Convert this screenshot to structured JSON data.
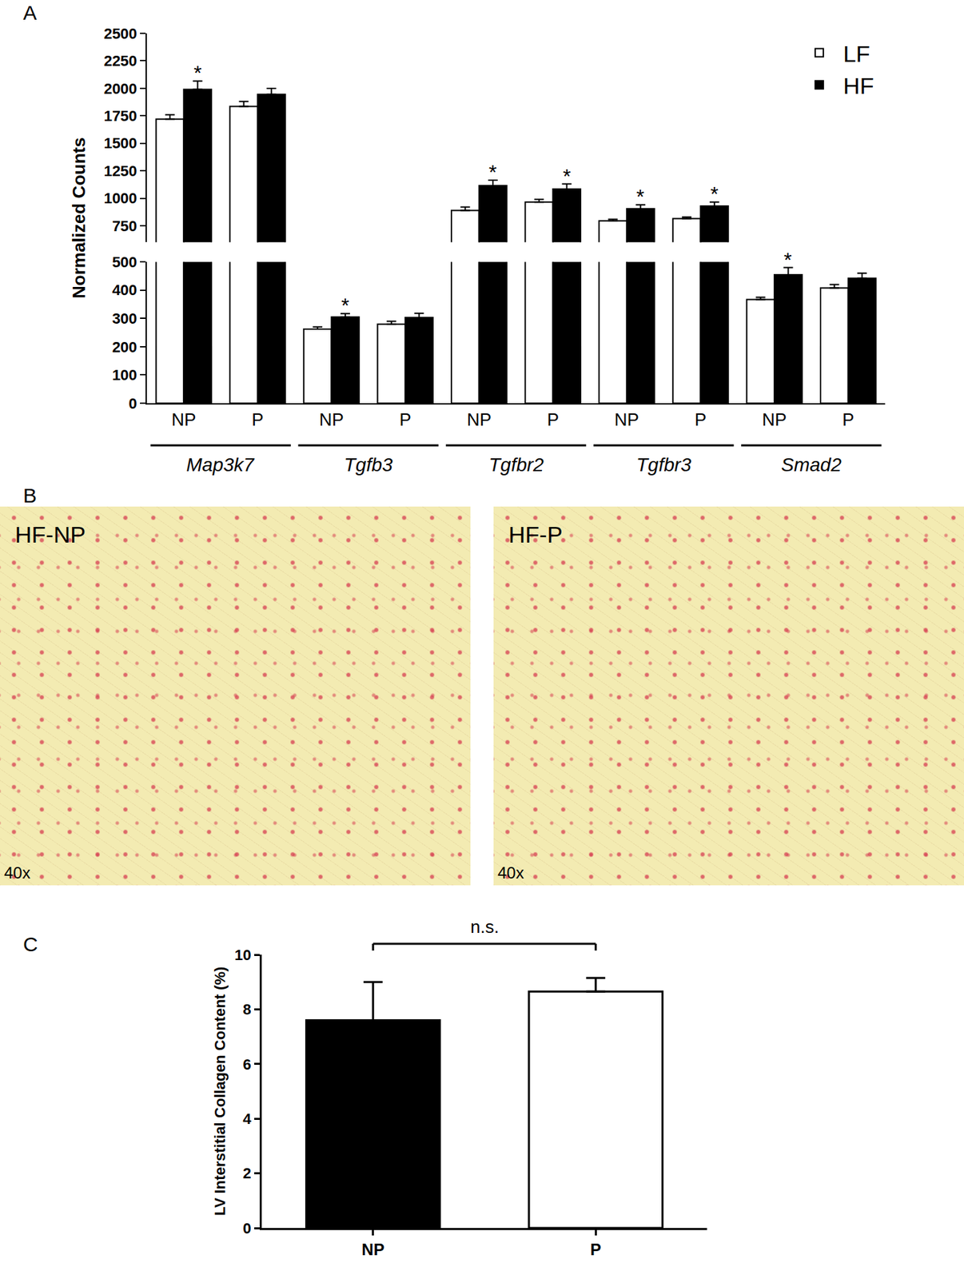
{
  "panel_labels": [
    "A",
    "B",
    "C"
  ],
  "chart_data": [
    {
      "type": "bar",
      "ylabel": "Normalized Counts",
      "categories": [
        "NP",
        "P",
        "NP",
        "P",
        "NP",
        "P",
        "NP",
        "P",
        "NP",
        "P"
      ],
      "category_groups": [
        "Map3k7",
        "Map3k7",
        "Tgfb3",
        "Tgfb3",
        "Tgfbr2",
        "Tgfbr2",
        "Tgfbr3",
        "Tgfbr3",
        "Smad2",
        "Smad2"
      ],
      "series": [
        {
          "name": "LF",
          "color": "#ffffff",
          "values": [
            1720,
            1835,
            262,
            280,
            890,
            965,
            795,
            815,
            367,
            408
          ],
          "errors": [
            40,
            45,
            8,
            10,
            30,
            25,
            15,
            15,
            8,
            12
          ]
        },
        {
          "name": "HF",
          "color": "#000000",
          "values": [
            1990,
            1945,
            305,
            303,
            1115,
            1085,
            905,
            930,
            455,
            442
          ],
          "errors": [
            75,
            55,
            12,
            15,
            50,
            45,
            35,
            35,
            25,
            18
          ]
        }
      ],
      "ylim": [
        0,
        2500
      ],
      "y_break": [
        500,
        600
      ],
      "yticks": [
        0,
        100,
        200,
        300,
        400,
        500,
        750,
        1000,
        1250,
        1500,
        1750,
        2000,
        2250,
        2500
      ],
      "legend": "top right",
      "annotations": [
        {
          "text": "*",
          "category": 0,
          "series": "HF"
        },
        {
          "text": "*",
          "category": 2,
          "series": "HF"
        },
        {
          "text": "*",
          "category": 4,
          "series": "HF"
        },
        {
          "text": "*",
          "category": 5,
          "series": "HF"
        },
        {
          "text": "*",
          "category": 6,
          "series": "HF"
        },
        {
          "text": "*",
          "category": 7,
          "series": "HF"
        },
        {
          "text": "*",
          "category": 8,
          "series": "HF"
        }
      ]
    },
    {
      "type": "bar",
      "ylabel": "LV Interstitial Collagen Content (%)",
      "categories": [
        "NP",
        "P"
      ],
      "values": [
        7.6,
        8.65
      ],
      "errors": [
        1.4,
        0.5
      ],
      "colors": [
        "#000000",
        "#ffffff"
      ],
      "ylim": [
        0,
        10
      ],
      "yticks": [
        0,
        2,
        4,
        6,
        8,
        10
      ],
      "annotations": [
        {
          "text": "n.s.",
          "between": [
            "NP",
            "P"
          ]
        }
      ]
    }
  ],
  "micrographs": [
    {
      "label": "HF-NP",
      "magnification": "40x"
    },
    {
      "label": "HF-P",
      "magnification": "40x"
    }
  ]
}
